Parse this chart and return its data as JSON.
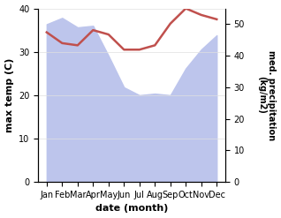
{
  "months": [
    "Jan",
    "Feb",
    "Mar",
    "Apr",
    "May",
    "Jun",
    "Jul",
    "Aug",
    "Sep",
    "Oct",
    "Nov",
    "Dec"
  ],
  "x": [
    0,
    1,
    2,
    3,
    4,
    5,
    6,
    7,
    8,
    9,
    10,
    11
  ],
  "temperature": [
    34.5,
    32.0,
    31.5,
    35.0,
    34.0,
    30.5,
    30.5,
    31.5,
    36.5,
    40.0,
    38.5,
    37.5
  ],
  "precipitation": [
    50.0,
    52.0,
    49.0,
    49.5,
    40.0,
    30.0,
    27.5,
    28.0,
    27.5,
    36.0,
    42.0,
    46.5
  ],
  "temp_color": "#c0504d",
  "precip_fill_color": "#bdc5ec",
  "precip_edge_color": "#bdc5ec",
  "xlabel": "date (month)",
  "ylabel_left": "max temp (C)",
  "ylabel_right": "med. precipitation\n(kg/m2)",
  "ylim_left": [
    0,
    40
  ],
  "ylim_right": [
    0,
    55
  ],
  "yticks_left": [
    0,
    10,
    20,
    30,
    40
  ],
  "yticks_right": [
    0,
    10,
    20,
    30,
    40,
    50
  ],
  "background_color": "#ffffff",
  "figure_facecolor": "#ffffff"
}
